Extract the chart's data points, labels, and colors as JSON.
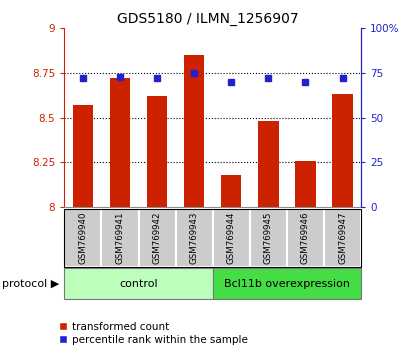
{
  "title": "GDS5180 / ILMN_1256907",
  "samples": [
    "GSM769940",
    "GSM769941",
    "GSM769942",
    "GSM769943",
    "GSM769944",
    "GSM769945",
    "GSM769946",
    "GSM769947"
  ],
  "red_values": [
    8.57,
    8.72,
    8.62,
    8.85,
    8.18,
    8.48,
    8.26,
    8.63
  ],
  "blue_values": [
    72,
    73,
    72,
    75,
    70,
    72,
    70,
    72
  ],
  "ylim_left": [
    8.0,
    9.0
  ],
  "ylim_right": [
    0,
    100
  ],
  "yticks_left": [
    8.0,
    8.25,
    8.5,
    8.75,
    9.0
  ],
  "yticks_right": [
    0,
    25,
    50,
    75,
    100
  ],
  "ytick_labels_left": [
    "8",
    "8.25",
    "8.5",
    "8.75",
    "9"
  ],
  "ytick_labels_right": [
    "0",
    "25",
    "50",
    "75",
    "100%"
  ],
  "bar_color": "#cc2200",
  "dot_color": "#2222cc",
  "bar_width": 0.55,
  "control_color": "#bbffbb",
  "overexp_color": "#44dd44",
  "label_bg_color": "#cccccc",
  "control_label": "control",
  "overexp_label": "Bcl11b overexpression",
  "protocol_label": "protocol",
  "legend_red": "transformed count",
  "legend_blue": "percentile rank within the sample",
  "n_control": 4,
  "n_overexp": 4,
  "base": 8.0
}
